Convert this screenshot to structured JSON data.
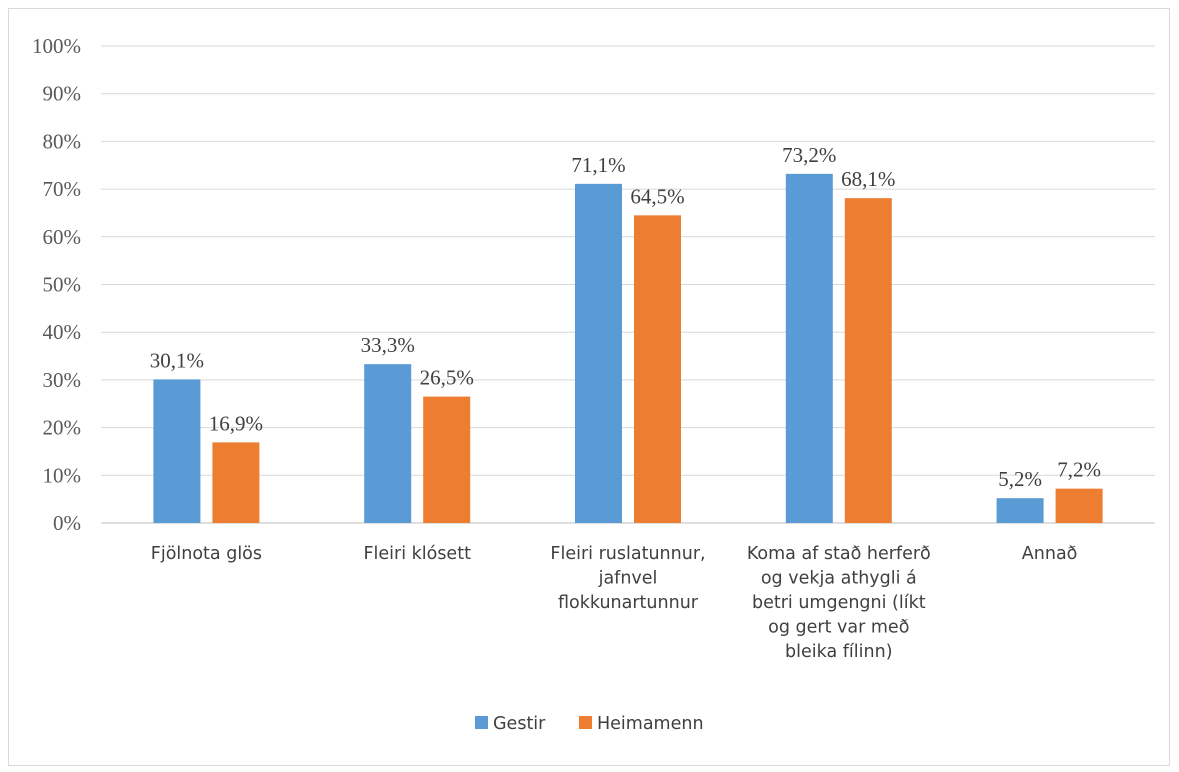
{
  "chart_data": {
    "type": "bar",
    "categories": [
      [
        "Fjölnota glös"
      ],
      [
        "Fleiri klósett"
      ],
      [
        "Fleiri ruslatunnur,",
        "jafnvel",
        "flokkunartunnur"
      ],
      [
        "Koma af stað herferð",
        "og vekja athygli á",
        "betri umgengni (líkt",
        "og gert var með",
        "bleika fílinn)"
      ],
      [
        "Annað"
      ]
    ],
    "series": [
      {
        "name": "Gestir",
        "color": "#5b9bd5",
        "values": [
          30.1,
          33.3,
          71.1,
          73.2,
          5.2
        ],
        "labels": [
          "30,1%",
          "33,3%",
          "71,1%",
          "73,2%",
          "5,2%"
        ]
      },
      {
        "name": "Heimamenn",
        "color": "#ed7d31",
        "values": [
          16.9,
          26.5,
          64.5,
          68.1,
          7.2
        ],
        "labels": [
          "16,9%",
          "26,5%",
          "64,5%",
          "68,1%",
          "7,2%"
        ]
      }
    ],
    "y_ticks": [
      "0%",
      "10%",
      "20%",
      "30%",
      "40%",
      "50%",
      "60%",
      "70%",
      "80%",
      "90%",
      "100%"
    ],
    "ylim": [
      0,
      100
    ],
    "grid": true,
    "legend_position": "bottom",
    "title": "",
    "xlabel": "",
    "ylabel": ""
  }
}
